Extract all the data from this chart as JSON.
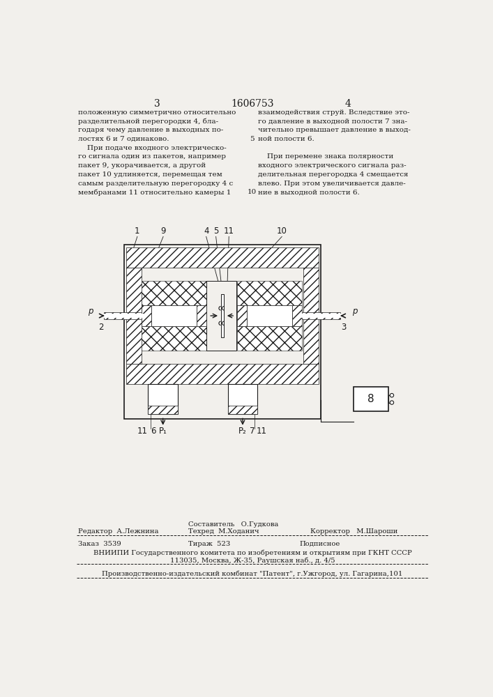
{
  "bg_color": "#f2f0ec",
  "text_color": "#1a1a1a",
  "page_num_left": "3",
  "page_num_center": "1606753",
  "page_num_right": "4",
  "col_left_text": [
    "положенную симметрично относительно",
    "разделительной перегородки 4, бла-",
    "годаря чему давление в выходных по-",
    "лостях 6 и 7 одинаково.",
    "    При подаче входного электрическо-",
    "го сигнала один из пакетов, например",
    "пакет 9, укорачивается, а другой",
    "пакет 10 удлиняется, перемещая тем",
    "самым разделительную перегородку 4 с",
    "мембранами 11 относительно камеры 1"
  ],
  "col_right_text": [
    "взаимодействия струй. Вследствие это-",
    "го давление в выходной полости 7 зна-",
    "чительно превышает давление в выход-",
    "ной полости 6.",
    "",
    "    При перемене знака полярности",
    "входного электрического сигнала раз-",
    "делительная перегородка 4 смещается",
    "влево. При этом увеличивается давле-",
    "ние в выходной полости 6."
  ],
  "line_number_5": "5",
  "line_number_10": "10",
  "footer_sestavitel": "Составитель   О.Гудкова",
  "footer_redaktor": "Редактор  А.Лежнина",
  "footer_tekhred": "Техред  М.Ходанич",
  "footer_korrektor": "Корректор   М.Шароши",
  "footer_zakaz": "Заказ  3539",
  "footer_tirazh": "Тираж  523",
  "footer_podpisnoe": "Подписное",
  "footer_vniip1": "ВНИИПИ Государственного комитета по изобретениям и открытиям при ГКНТ СССР",
  "footer_vniip2": "113035, Москва, Ж-35, Раушская наб., д. 4/5",
  "footer_kombinat": "Производственно-издательский комбинат \"Патент\", г.Ужгород, ул. Гагарина,101"
}
